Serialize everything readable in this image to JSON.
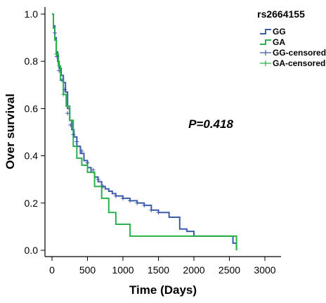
{
  "chart_data": {
    "type": "line",
    "xlabel": "Time (Days)",
    "ylabel": "Over survival",
    "xlim": [
      0,
      3000
    ],
    "ylim": [
      0,
      1.0
    ],
    "x_ticks": [
      "0",
      "500",
      "1000",
      "1500",
      "2000",
      "2500",
      "3000"
    ],
    "y_ticks": [
      "0.0",
      "0.2",
      "0.4",
      "0.6",
      "0.8",
      "1.0"
    ],
    "legend_title": "rs2664155",
    "legend": [
      "GG",
      "GA",
      "GG-censored",
      "GA-censored"
    ],
    "legend_position": "top-right",
    "annotation": "P=0.418",
    "grid": false,
    "series": [
      {
        "name": "GG",
        "color": "#3b5bab",
        "x": [
          0,
          20,
          40,
          60,
          80,
          100,
          130,
          160,
          190,
          220,
          250,
          280,
          310,
          350,
          400,
          450,
          500,
          550,
          600,
          650,
          700,
          750,
          800,
          850,
          900,
          1000,
          1100,
          1200,
          1300,
          1400,
          1500,
          1650,
          1800,
          1900,
          2000,
          2200,
          2450,
          2550,
          2600
        ],
        "y": [
          1.0,
          0.95,
          0.9,
          0.84,
          0.8,
          0.77,
          0.74,
          0.71,
          0.67,
          0.6,
          0.55,
          0.51,
          0.48,
          0.44,
          0.41,
          0.38,
          0.35,
          0.33,
          0.31,
          0.29,
          0.27,
          0.26,
          0.25,
          0.24,
          0.23,
          0.22,
          0.21,
          0.2,
          0.19,
          0.17,
          0.16,
          0.14,
          0.09,
          0.08,
          0.06,
          0.06,
          0.06,
          0.03,
          0.0
        ]
      },
      {
        "name": "GA",
        "color": "#27b34a",
        "x": [
          0,
          20,
          40,
          60,
          90,
          120,
          160,
          200,
          250,
          300,
          350,
          420,
          500,
          600,
          700,
          800,
          900,
          1100,
          2000,
          2500,
          2600
        ],
        "y": [
          1.0,
          0.94,
          0.89,
          0.83,
          0.78,
          0.72,
          0.66,
          0.61,
          0.55,
          0.44,
          0.39,
          0.36,
          0.33,
          0.27,
          0.22,
          0.16,
          0.11,
          0.06,
          0.06,
          0.06,
          0.0
        ]
      }
    ],
    "censored": [
      {
        "name": "GG-censored",
        "color": "#3b5bab",
        "x": [
          40,
          70,
          100,
          140,
          180,
          220,
          260,
          300,
          350,
          420,
          500,
          580,
          650,
          720,
          900,
          1000,
          1100,
          1200,
          1300,
          1400,
          1500
        ],
        "y": [
          0.92,
          0.82,
          0.76,
          0.72,
          0.68,
          0.58,
          0.53,
          0.49,
          0.46,
          0.42,
          0.37,
          0.34,
          0.3,
          0.27,
          0.23,
          0.22,
          0.21,
          0.2,
          0.19,
          0.17,
          0.16
        ]
      },
      {
        "name": "GA-censored",
        "color": "#27b34a",
        "x": [
          60,
          160
        ],
        "y": [
          0.83,
          0.66
        ]
      }
    ]
  }
}
